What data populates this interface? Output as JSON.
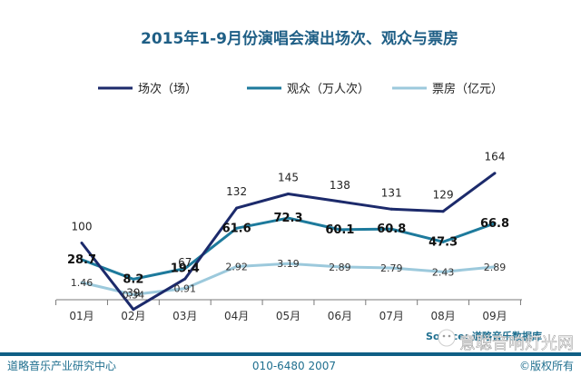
{
  "chart_data": {
    "type": "line",
    "title": "2015年1-9月份演唱会演出场次、观众与票房",
    "categories": [
      "01月",
      "02月",
      "03月",
      "04月",
      "05月",
      "06月",
      "07月",
      "08月",
      "09月"
    ],
    "series": [
      {
        "name": "场次（场）",
        "values": [
          100,
          39,
          67,
          132,
          145,
          138,
          131,
          129,
          164
        ],
        "color": "#1c2a6b"
      },
      {
        "name": "观众（万人次）",
        "values": [
          28.7,
          8.2,
          19.4,
          61.6,
          72.3,
          60.1,
          60.8,
          47.3,
          66.8
        ],
        "color": "#1d7a9c"
      },
      {
        "name": "票房（亿元）",
        "values": [
          1.46,
          0.34,
          0.91,
          2.92,
          3.19,
          2.89,
          2.79,
          2.43,
          2.89
        ],
        "color": "#9cc9dc"
      }
    ],
    "grid": false,
    "legend_position": "top"
  },
  "footer": {
    "source": "Source: 道略音乐数据库",
    "left": "道略音乐产业研究中心",
    "center": "010-6480 2007",
    "right": "©版权所有"
  },
  "watermark": "意聪音响灯光网",
  "colors": {
    "title": "#1f5f86",
    "footer_bar": "#0f5f85",
    "footer_text": "#1f6f8f"
  }
}
